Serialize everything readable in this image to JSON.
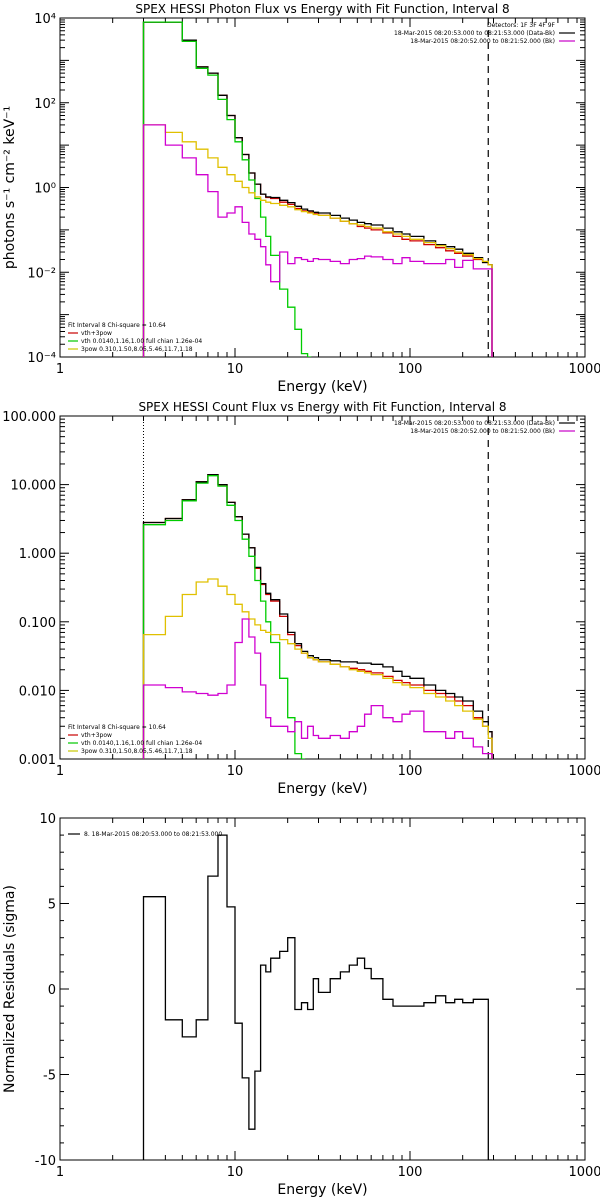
{
  "chart_data": [
    {
      "type": "line",
      "title": "SPEX HESSI Photon Flux vs Energy with Fit Function, Interval 8",
      "xlabel": "Energy (keV)",
      "ylabel": "photons s⁻¹ cm⁻² keV⁻¹",
      "xscale": "log",
      "yscale": "log",
      "xlim": [
        1,
        1000
      ],
      "ylim": [
        0.0001,
        10000
      ],
      "x_ticks": [
        "1",
        "10",
        "100",
        "1000"
      ],
      "y_ticks": [
        "10⁻⁴",
        "10⁻²",
        "10⁰",
        "10²",
        "10⁴"
      ],
      "y_tick_values": [
        0.0001,
        0.01,
        1,
        100,
        10000
      ],
      "vlines": [
        3,
        280
      ],
      "legend_top_right": [
        "Detectors: 1F 3F 4F 9F",
        "18-Mar-2015 08:20:53.000 to 08:21:53.000 (Data-Bk)",
        "18-Mar-2015 08:20:52.000 to 08:21:52.000 (Bk)"
      ],
      "legend_top_right_colors": [
        "#000000",
        "#000000",
        "#c800c8"
      ],
      "legend_bottom_left": [
        "Fit Interval 8   Chi-square = 10.64",
        "vth+3pow",
        "vth 0.0140,1.16,1.00  full chian 1.26e-04",
        "3pow 0.310,1.50,8.05,5.46,11.7,1.18"
      ],
      "legend_bottom_left_colors": [
        "#000000",
        "#c80000",
        "#00c800",
        "#c8c800"
      ],
      "series": [
        {
          "name": "vth+3pow",
          "color": "#d00000",
          "x": [
            3,
            4,
            5,
            6,
            7,
            8,
            9,
            10,
            11,
            12,
            13,
            14,
            15,
            16,
            18,
            20,
            22,
            24,
            26,
            28,
            30,
            35,
            40,
            45,
            50,
            55,
            60,
            70,
            80,
            90,
            100,
            120,
            140,
            160,
            180,
            200,
            230,
            260,
            280
          ],
          "y": [
            8000,
            8000,
            3000,
            700,
            500,
            150,
            50,
            15,
            6,
            2.2,
            1.2,
            0.7,
            0.58,
            0.55,
            0.45,
            0.4,
            0.32,
            0.28,
            0.26,
            0.24,
            0.22,
            0.19,
            0.16,
            0.14,
            0.12,
            0.11,
            0.1,
            0.085,
            0.07,
            0.06,
            0.055,
            0.045,
            0.038,
            0.032,
            0.028,
            0.024,
            0.02,
            0.017,
            0.015
          ]
        },
        {
          "name": "",
          "color": "#000000",
          "x": [
            3,
            4,
            5,
            6,
            7,
            8,
            9,
            10,
            11,
            12,
            13,
            14,
            15,
            16,
            18,
            20,
            22,
            24,
            26,
            28,
            30,
            35,
            40,
            45,
            50,
            55,
            60,
            70,
            80,
            90,
            100,
            120,
            140,
            160,
            180,
            200,
            230,
            260,
            280
          ],
          "y": [
            8000,
            8000,
            3000,
            700,
            500,
            150,
            50,
            15,
            6,
            2.2,
            1.2,
            0.7,
            0.6,
            0.58,
            0.5,
            0.44,
            0.36,
            0.31,
            0.28,
            0.26,
            0.25,
            0.22,
            0.19,
            0.17,
            0.15,
            0.14,
            0.13,
            0.11,
            0.09,
            0.08,
            0.07,
            0.055,
            0.045,
            0.04,
            0.035,
            0.028,
            0.022,
            0.017,
            0.015
          ]
        },
        {
          "name": "vth",
          "color": "#00cc00",
          "x": [
            3,
            4,
            5,
            6,
            7,
            8,
            9,
            10,
            11,
            12,
            13,
            14,
            15,
            16,
            18,
            20,
            22,
            24,
            26
          ],
          "y": [
            8000,
            8000,
            2800,
            650,
            450,
            120,
            40,
            12,
            4.5,
            1.5,
            0.55,
            0.2,
            0.07,
            0.025,
            0.004,
            0.0015,
            0.00045,
            0.00012,
            0.0001
          ]
        },
        {
          "name": "3pow",
          "color": "#e0c000",
          "x": [
            3,
            4,
            5,
            6,
            7,
            8,
            9,
            10,
            11,
            12,
            13,
            14,
            15,
            16,
            18,
            20,
            22,
            24,
            26,
            28,
            30,
            35,
            40,
            45,
            50,
            55,
            60,
            70,
            80,
            90,
            100,
            120,
            140,
            160,
            180,
            200,
            230,
            260,
            280
          ],
          "y": [
            30,
            20,
            12,
            8,
            5,
            3,
            2,
            1.4,
            1,
            0.75,
            0.6,
            0.5,
            0.45,
            0.42,
            0.38,
            0.35,
            0.3,
            0.27,
            0.25,
            0.23,
            0.22,
            0.19,
            0.16,
            0.14,
            0.13,
            0.12,
            0.11,
            0.09,
            0.08,
            0.07,
            0.06,
            0.05,
            0.042,
            0.036,
            0.03,
            0.026,
            0.021,
            0.018,
            0.015
          ]
        },
        {
          "name": "",
          "color": "#d000d0",
          "x": [
            3,
            4,
            5,
            6,
            7,
            8,
            9,
            10,
            11,
            12,
            13,
            14,
            15,
            16,
            18,
            20,
            22,
            24,
            26,
            28,
            30,
            35,
            40,
            45,
            50,
            55,
            60,
            70,
            80,
            90,
            100,
            120,
            140,
            160,
            180,
            200,
            230,
            260,
            280
          ],
          "y": [
            30,
            10,
            5,
            2,
            0.8,
            0.2,
            0.25,
            0.35,
            0.15,
            0.08,
            0.06,
            0.04,
            0.015,
            0.006,
            0.03,
            0.016,
            0.022,
            0.02,
            0.018,
            0.021,
            0.02,
            0.018,
            0.016,
            0.02,
            0.021,
            0.024,
            0.023,
            0.02,
            0.016,
            0.022,
            0.018,
            0.016,
            0.016,
            0.02,
            0.013,
            0.019,
            0.012,
            0.012,
            0.012
          ]
        }
      ]
    },
    {
      "type": "line",
      "title": "SPEX HESSI Count Flux vs Energy with Fit Function, Interval 8",
      "xlabel": "Energy (keV)",
      "ylabel": "",
      "xscale": "log",
      "yscale": "log",
      "xlim": [
        1,
        1000
      ],
      "ylim": [
        0.001,
        100
      ],
      "x_ticks": [
        "1",
        "10",
        "100",
        "1000"
      ],
      "y_ticks": [
        "0.001",
        "0.010",
        "0.100",
        "1.000",
        "10.000",
        "100.000"
      ],
      "y_tick_values": [
        0.001,
        0.01,
        0.1,
        1,
        10,
        100
      ],
      "vlines": [
        3,
        280
      ],
      "legend_top_right": [
        "18-Mar-2015 08:20:53.000 to 08:21:53.000 (Data-Bk)",
        "18-Mar-2015 08:20:52.000 to 08:21:52.000 (Bk)"
      ],
      "legend_top_right_colors": [
        "#000000",
        "#c800c8"
      ],
      "legend_bottom_left": [
        "Fit Interval 8   Chi-square = 10.64",
        "vth+3pow",
        "vth 0.0140,1.16,1.00  full chian 1.26e-04",
        "3pow 0.310,1.50,8.05,5.46,11.7,1.18"
      ],
      "legend_bottom_left_colors": [
        "#000000",
        "#c80000",
        "#00c800",
        "#c8c800"
      ],
      "series": [
        {
          "name": "vth+3pow",
          "color": "#d00000",
          "x": [
            3,
            4,
            5,
            6,
            7,
            8,
            9,
            10,
            11,
            12,
            13,
            14,
            15,
            16,
            18,
            20,
            22,
            24,
            26,
            28,
            30,
            35,
            40,
            45,
            50,
            55,
            60,
            70,
            80,
            90,
            100,
            120,
            140,
            160,
            180,
            200,
            230,
            260,
            280
          ],
          "y": [
            2.8,
            3.2,
            6,
            11,
            14,
            10,
            5.5,
            3.4,
            1.9,
            1.2,
            0.6,
            0.35,
            0.25,
            0.2,
            0.12,
            0.065,
            0.045,
            0.035,
            0.03,
            0.028,
            0.026,
            0.024,
            0.022,
            0.021,
            0.02,
            0.019,
            0.018,
            0.016,
            0.014,
            0.013,
            0.012,
            0.01,
            0.009,
            0.008,
            0.007,
            0.006,
            0.004,
            0.003,
            0.0025
          ]
        },
        {
          "name": "",
          "color": "#000000",
          "x": [
            3,
            4,
            5,
            6,
            7,
            8,
            9,
            10,
            11,
            12,
            13,
            14,
            15,
            16,
            18,
            20,
            22,
            24,
            26,
            28,
            30,
            35,
            40,
            45,
            50,
            55,
            60,
            70,
            80,
            90,
            100,
            120,
            140,
            160,
            180,
            200,
            230,
            260,
            280
          ],
          "y": [
            2.8,
            3.2,
            6,
            11,
            14,
            10,
            5.5,
            3.4,
            1.9,
            1.2,
            0.62,
            0.36,
            0.26,
            0.21,
            0.13,
            0.07,
            0.048,
            0.037,
            0.032,
            0.03,
            0.028,
            0.027,
            0.026,
            0.026,
            0.025,
            0.025,
            0.024,
            0.022,
            0.019,
            0.016,
            0.015,
            0.012,
            0.01,
            0.009,
            0.008,
            0.007,
            0.005,
            0.0035,
            0.0025
          ]
        },
        {
          "name": "vth",
          "color": "#00cc00",
          "x": [
            3,
            4,
            5,
            6,
            7,
            8,
            9,
            10,
            11,
            12,
            13,
            14,
            15,
            16,
            18,
            20,
            22,
            24
          ],
          "y": [
            2.6,
            3,
            5.8,
            10.5,
            13.5,
            9.5,
            5,
            3,
            1.6,
            0.9,
            0.4,
            0.2,
            0.1,
            0.05,
            0.015,
            0.004,
            0.0012,
            0.001
          ]
        },
        {
          "name": "3pow",
          "color": "#e0c000",
          "x": [
            3,
            4,
            5,
            6,
            7,
            8,
            9,
            10,
            11,
            12,
            13,
            14,
            15,
            16,
            18,
            20,
            22,
            24,
            26,
            28,
            30,
            35,
            40,
            45,
            50,
            55,
            60,
            70,
            80,
            90,
            100,
            120,
            140,
            160,
            180,
            200,
            230,
            260,
            280
          ],
          "y": [
            0.065,
            0.12,
            0.25,
            0.38,
            0.42,
            0.33,
            0.25,
            0.18,
            0.14,
            0.11,
            0.09,
            0.075,
            0.07,
            0.065,
            0.055,
            0.048,
            0.04,
            0.035,
            0.03,
            0.028,
            0.026,
            0.024,
            0.022,
            0.02,
            0.019,
            0.018,
            0.017,
            0.015,
            0.013,
            0.012,
            0.011,
            0.009,
            0.008,
            0.007,
            0.006,
            0.005,
            0.0038,
            0.003,
            0.002
          ]
        },
        {
          "name": "",
          "color": "#d000d0",
          "x": [
            3,
            4,
            5,
            6,
            7,
            8,
            9,
            10,
            11,
            12,
            13,
            14,
            15,
            16,
            18,
            20,
            22,
            24,
            26,
            28,
            30,
            35,
            40,
            45,
            50,
            55,
            60,
            70,
            80,
            90,
            100,
            120,
            140,
            160,
            180,
            200,
            230,
            260,
            280
          ],
          "y": [
            0.012,
            0.011,
            0.0095,
            0.009,
            0.0085,
            0.009,
            0.012,
            0.05,
            0.11,
            0.06,
            0.035,
            0.012,
            0.004,
            0.003,
            0.003,
            0.0025,
            0.0035,
            0.002,
            0.003,
            0.0022,
            0.002,
            0.0022,
            0.002,
            0.0025,
            0.003,
            0.0045,
            0.006,
            0.004,
            0.0035,
            0.0045,
            0.005,
            0.0025,
            0.0025,
            0.002,
            0.0025,
            0.002,
            0.0015,
            0.0012,
            0.0012
          ]
        }
      ]
    },
    {
      "type": "line",
      "title": "",
      "xlabel": "Energy (keV)",
      "ylabel": "Normalized Residuals (sigma)",
      "xscale": "log",
      "yscale": "linear",
      "xlim": [
        1,
        1000
      ],
      "ylim": [
        -10,
        10
      ],
      "x_ticks": [
        "1",
        "10",
        "100",
        "1000"
      ],
      "y_ticks": [
        "-10",
        "-5",
        "0",
        "5",
        "10"
      ],
      "y_tick_values": [
        -10,
        -5,
        0,
        5,
        10
      ],
      "legend_top_left": [
        "8. 18-Mar-2015 08:20:53.000 to 08:21:53.000"
      ],
      "series": [
        {
          "name": "",
          "color": "#000000",
          "x": [
            3,
            4,
            5,
            6,
            7,
            8,
            9,
            10,
            11,
            12,
            13,
            14,
            15,
            16,
            18,
            20,
            22,
            24,
            26,
            28,
            30,
            35,
            40,
            45,
            50,
            55,
            60,
            70,
            80,
            90,
            100,
            120,
            140,
            160,
            180,
            200,
            230,
            260,
            280
          ],
          "y": [
            5.4,
            -1.8,
            -2.8,
            -1.8,
            6.6,
            9.0,
            4.8,
            -2.0,
            -5.2,
            -8.2,
            -4.8,
            1.4,
            1.0,
            1.8,
            2.2,
            3.0,
            -1.2,
            -0.8,
            -1.2,
            0.6,
            -0.2,
            0.6,
            1.0,
            1.4,
            1.8,
            1.2,
            0.6,
            -0.6,
            -1.0,
            -1.0,
            -1.0,
            -0.8,
            -0.4,
            -0.8,
            -0.6,
            -0.8,
            -0.6,
            -0.6,
            -10
          ]
        }
      ]
    }
  ]
}
